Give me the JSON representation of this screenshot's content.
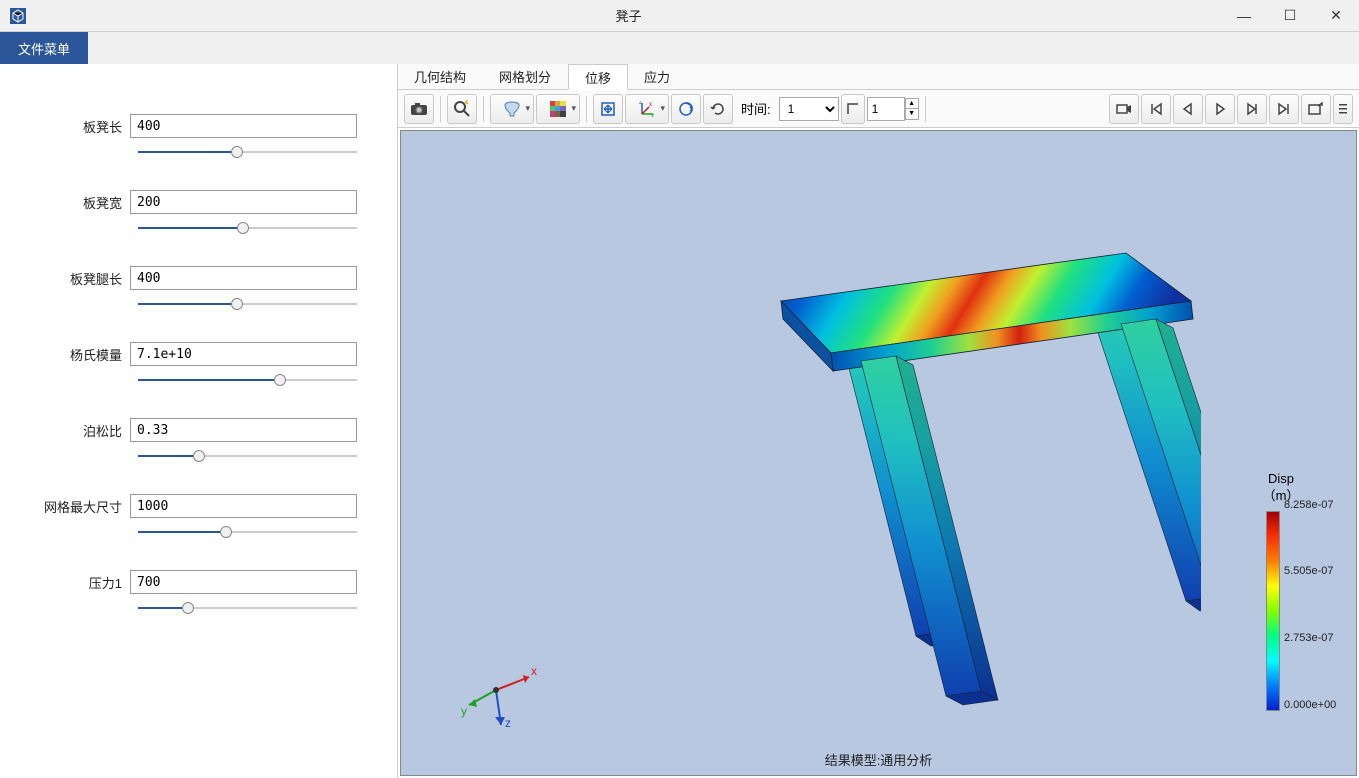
{
  "window": {
    "title": "凳子",
    "minimize": "—",
    "maximize": "☐",
    "close": "✕"
  },
  "menu": {
    "file": "文件菜单"
  },
  "params": [
    {
      "label": "板凳长",
      "value": "400",
      "percent": 45
    },
    {
      "label": "板凳宽",
      "value": "200",
      "percent": 48
    },
    {
      "label": "板凳腿长",
      "value": "400",
      "percent": 45
    },
    {
      "label": "杨氏模量",
      "value": "7.1e+10",
      "percent": 65
    },
    {
      "label": "泊松比",
      "value": "0.33",
      "percent": 28
    },
    {
      "label": "网格最大尺寸",
      "value": "1000",
      "percent": 40
    },
    {
      "label": "压力1",
      "value": "700",
      "percent": 23
    }
  ],
  "tabs": [
    {
      "label": "几何结构",
      "active": false
    },
    {
      "label": "网格划分",
      "active": false
    },
    {
      "label": "位移",
      "active": true
    },
    {
      "label": "应力",
      "active": false
    }
  ],
  "toolbar": {
    "time_label": "时间:",
    "time_dropdown": "1",
    "time_input": "1"
  },
  "legend": {
    "title": "Disp",
    "unit": "（m）",
    "ticks": [
      {
        "label": "8.258e-07",
        "pos": 0
      },
      {
        "label": "5.505e-07",
        "pos": 66
      },
      {
        "label": "2.753e-07",
        "pos": 133
      },
      {
        "label": "0.000e+00",
        "pos": 200
      }
    ],
    "colors": {
      "max": "#a00000",
      "min": "#0020d0"
    }
  },
  "axes": {
    "x": "x",
    "y": "y",
    "z": "z"
  },
  "footer": "结果模型:通用分析",
  "viewport": {
    "background": "#b8c8e0"
  }
}
